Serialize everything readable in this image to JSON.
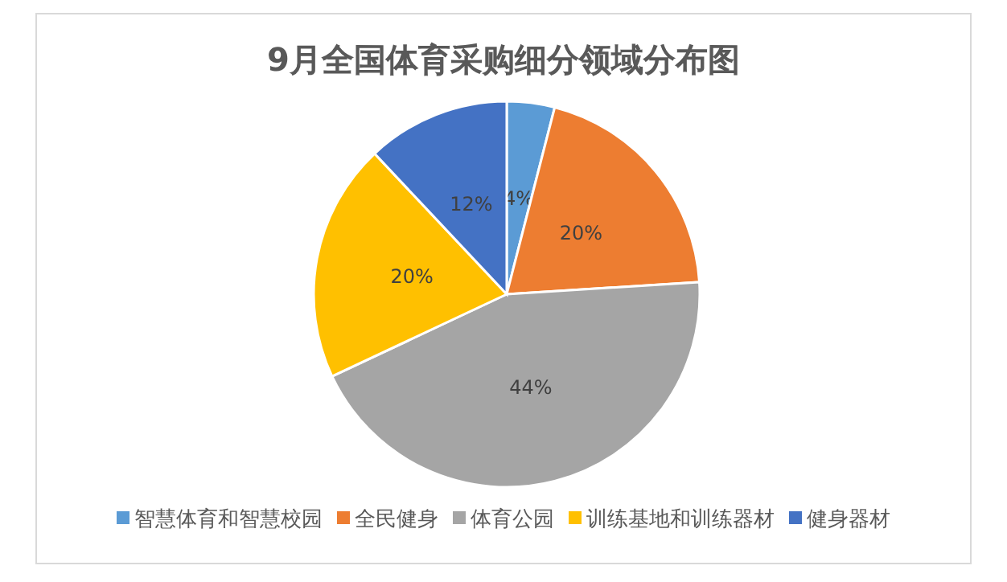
{
  "chart_data": {
    "type": "pie",
    "title": "9月全国体育采购细分领域分布图",
    "categories": [
      "智慧体育和智慧校园",
      "全民健身",
      "体育公园",
      "训练基地和训练器材",
      "健身器材"
    ],
    "values": [
      4,
      20,
      44,
      20,
      12
    ],
    "value_labels": [
      "4%",
      "20%",
      "44%",
      "20%",
      "12%"
    ],
    "colors": [
      "#5b9bd5",
      "#ed7d31",
      "#a5a5a5",
      "#ffc000",
      "#4472c4"
    ],
    "legend": "bottom"
  }
}
